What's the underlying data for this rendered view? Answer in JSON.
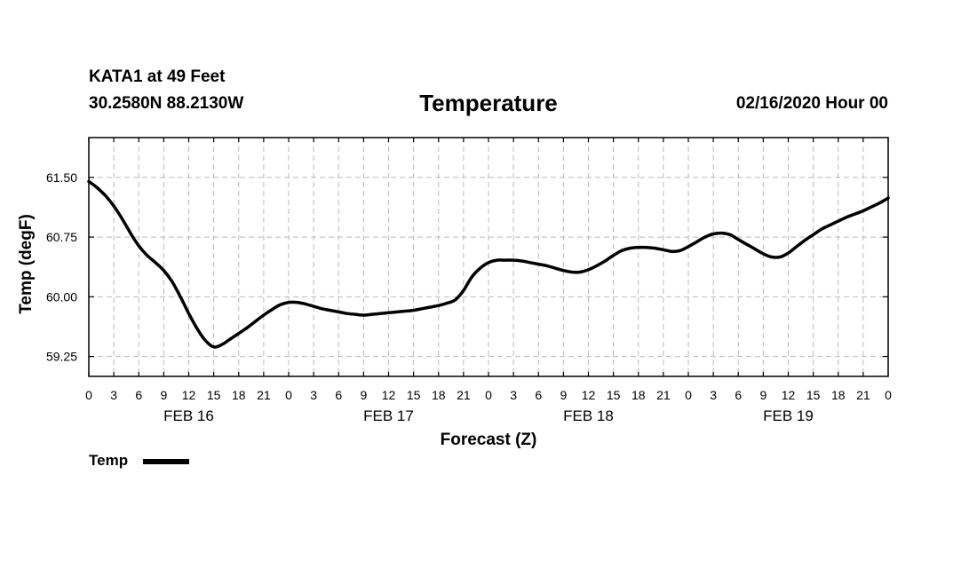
{
  "header": {
    "station": "KATA1 at 49 Feet",
    "coords": "30.2580N 88.2130W",
    "title": "Temperature",
    "datetime": "02/16/2020 Hour 00"
  },
  "chart_data": {
    "type": "line",
    "title": "Temperature",
    "xlabel": "Forecast (Z)",
    "ylabel": "Temp (degF)",
    "ylim": [
      59.0,
      62.0
    ],
    "xlim": [
      0,
      96
    ],
    "grid": true,
    "x_tick_labels": [
      "0",
      "3",
      "6",
      "9",
      "12",
      "15",
      "18",
      "21",
      "0",
      "3",
      "6",
      "9",
      "12",
      "15",
      "18",
      "21",
      "0",
      "3",
      "6",
      "9",
      "12",
      "15",
      "18",
      "21",
      "0",
      "3",
      "6",
      "9",
      "12",
      "15",
      "18",
      "21",
      "0"
    ],
    "y_ticks": [
      59.25,
      60.0,
      60.75,
      61.5
    ],
    "y_tick_labels": [
      "59.25",
      "60.00",
      "60.75",
      "61.50"
    ],
    "day_labels": [
      {
        "label": "FEB 16",
        "hour": 12
      },
      {
        "label": "FEB 17",
        "hour": 36
      },
      {
        "label": "FEB 18",
        "hour": 60
      },
      {
        "label": "FEB 19",
        "hour": 84
      }
    ],
    "series": [
      {
        "name": "Temp",
        "color": "#000000",
        "x": [
          0,
          1,
          2,
          3,
          4,
          5,
          6,
          7,
          8,
          9,
          10,
          11,
          12,
          13,
          14,
          15,
          16,
          17,
          18,
          19,
          20,
          21,
          22,
          23,
          24,
          25,
          26,
          27,
          28,
          29,
          30,
          31,
          32,
          33,
          34,
          35,
          36,
          37,
          38,
          39,
          40,
          41,
          42,
          43,
          44,
          45,
          46,
          47,
          48,
          49,
          50,
          51,
          52,
          53,
          54,
          55,
          56,
          57,
          58,
          59,
          60,
          61,
          62,
          63,
          64,
          65,
          66,
          67,
          68,
          69,
          70,
          71,
          72,
          73,
          74,
          75,
          76,
          77,
          78,
          79,
          80,
          81,
          82,
          83,
          84,
          85,
          86,
          87,
          88,
          89,
          90,
          91,
          92,
          93,
          94,
          95,
          96
        ],
        "values": [
          61.45,
          61.37,
          61.27,
          61.14,
          60.98,
          60.8,
          60.64,
          60.52,
          60.43,
          60.33,
          60.19,
          60.0,
          59.79,
          59.6,
          59.45,
          59.37,
          59.4,
          59.47,
          59.54,
          59.61,
          59.69,
          59.77,
          59.84,
          59.9,
          59.93,
          59.93,
          59.91,
          59.88,
          59.85,
          59.83,
          59.81,
          59.79,
          59.78,
          59.77,
          59.78,
          59.79,
          59.8,
          59.81,
          59.82,
          59.83,
          59.85,
          59.87,
          59.89,
          59.92,
          59.96,
          60.08,
          60.25,
          60.36,
          60.43,
          60.46,
          60.46,
          60.46,
          60.45,
          60.43,
          60.41,
          60.39,
          60.36,
          60.33,
          60.31,
          60.31,
          60.34,
          60.39,
          60.45,
          60.52,
          60.58,
          60.61,
          60.62,
          60.62,
          60.61,
          60.59,
          60.57,
          60.58,
          60.63,
          60.69,
          60.75,
          60.79,
          60.8,
          60.78,
          60.72,
          60.66,
          60.6,
          60.54,
          60.5,
          60.5,
          60.55,
          60.63,
          60.71,
          60.78,
          60.85,
          60.9,
          60.95,
          61.0,
          61.04,
          61.08,
          61.13,
          61.18,
          61.24
        ]
      }
    ]
  },
  "legend": {
    "label": "Temp"
  }
}
